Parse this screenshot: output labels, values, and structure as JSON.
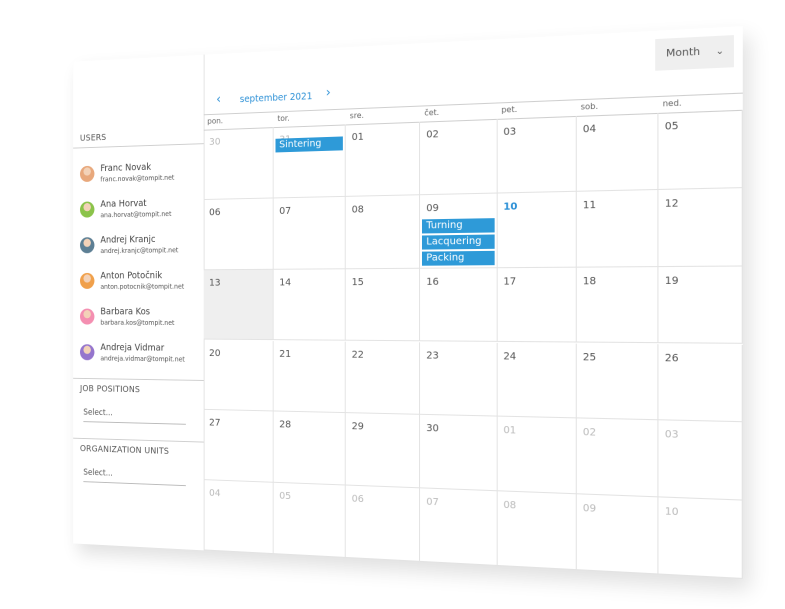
{
  "sidebar": {
    "users_heading": "USERS",
    "users": [
      {
        "name": "Franc Novak",
        "email": "franc.novak@tompit.net"
      },
      {
        "name": "Ana Horvat",
        "email": "ana.horvat@tompit.net"
      },
      {
        "name": "Andrej Kranjc",
        "email": "andrej.kranjc@tompit.net"
      },
      {
        "name": "Anton Potočnik",
        "email": "anton.potocnik@tompit.net"
      },
      {
        "name": "Barbara Kos",
        "email": "barbara.kos@tompit.net"
      },
      {
        "name": "Andreja Vidmar",
        "email": "andreja.vidmar@tompit.net"
      }
    ],
    "job_positions": {
      "heading": "JOB POSITIONS",
      "placeholder": "Select..."
    },
    "organization_units": {
      "heading": "ORGANIZATION UNITS",
      "placeholder": "Select..."
    }
  },
  "calendar": {
    "view": "Month",
    "month_label": "september 2021",
    "weekdays": [
      "pon.",
      "tor.",
      "sre.",
      "čet.",
      "pet.",
      "sob.",
      "ned."
    ],
    "weeks": [
      [
        {
          "day": "30"
        },
        {
          "day": "31",
          "events": [
            "Sintering"
          ]
        },
        {
          "day": "01"
        },
        {
          "day": "02"
        },
        {
          "day": "03"
        },
        {
          "day": "04"
        },
        {
          "day": "05"
        }
      ],
      [
        {
          "day": "06"
        },
        {
          "day": "07"
        },
        {
          "day": "08"
        },
        {
          "day": "09",
          "events": [
            "Turning",
            "Lacquering",
            "Packing"
          ]
        },
        {
          "day": "10"
        },
        {
          "day": "11"
        },
        {
          "day": "12"
        }
      ],
      [
        {
          "day": "13"
        },
        {
          "day": "14"
        },
        {
          "day": "15"
        },
        {
          "day": "16"
        },
        {
          "day": "17"
        },
        {
          "day": "18"
        },
        {
          "day": "19"
        }
      ],
      [
        {
          "day": "20"
        },
        {
          "day": "21"
        },
        {
          "day": "22"
        },
        {
          "day": "23"
        },
        {
          "day": "24"
        },
        {
          "day": "25"
        },
        {
          "day": "26"
        }
      ],
      [
        {
          "day": "27"
        },
        {
          "day": "28"
        },
        {
          "day": "29"
        },
        {
          "day": "30"
        },
        {
          "day": "01"
        },
        {
          "day": "02"
        },
        {
          "day": "03"
        }
      ],
      [
        {
          "day": "04"
        },
        {
          "day": "05"
        },
        {
          "day": "06"
        },
        {
          "day": "07"
        },
        {
          "day": "08"
        },
        {
          "day": "09"
        },
        {
          "day": "10"
        }
      ]
    ]
  }
}
